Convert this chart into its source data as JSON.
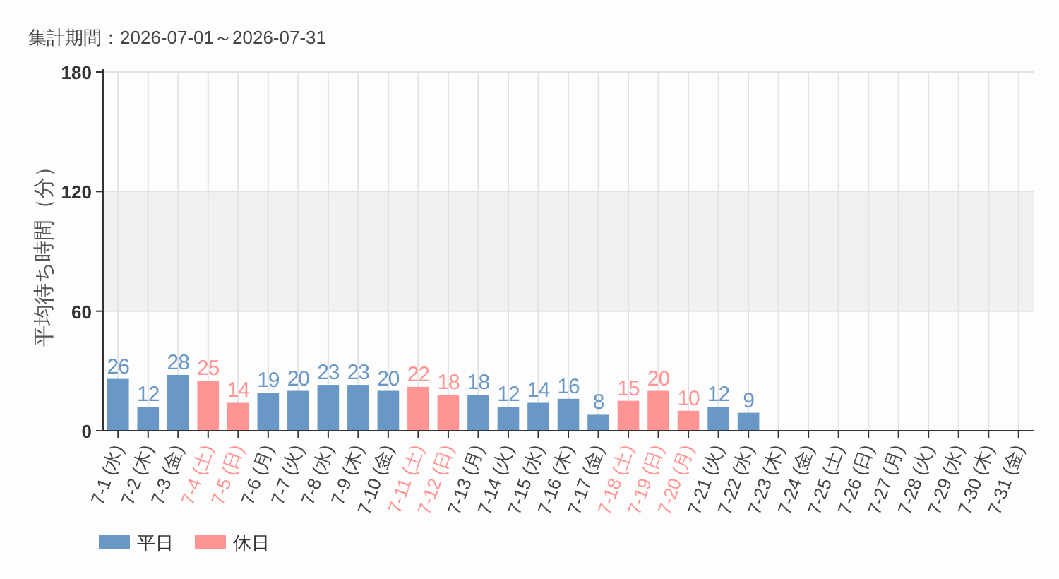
{
  "chart_data": {
    "type": "bar",
    "title": "集計期間：2026-07-01～2026-07-31",
    "ylabel": "平均待ち時間（分）",
    "categories": [
      "7-1 (水)",
      "7-2 (木)",
      "7-3 (金)",
      "7-4 (土)",
      "7-5 (日)",
      "7-6 (月)",
      "7-7 (火)",
      "7-8 (水)",
      "7-9 (木)",
      "7-10 (金)",
      "7-11 (土)",
      "7-12 (日)",
      "7-13 (月)",
      "7-14 (火)",
      "7-15 (水)",
      "7-16 (木)",
      "7-17 (金)",
      "7-18 (土)",
      "7-19 (日)",
      "7-20 (月)",
      "7-21 (火)",
      "7-22 (水)",
      "7-23 (木)",
      "7-24 (金)",
      "7-25 (土)",
      "7-26 (日)",
      "7-27 (月)",
      "7-28 (火)",
      "7-29 (水)",
      "7-30 (木)",
      "7-31 (金)"
    ],
    "series": [
      {
        "name": "平日",
        "color": "#6a98c6",
        "values": [
          26,
          12,
          28,
          null,
          null,
          19,
          20,
          23,
          23,
          20,
          null,
          null,
          18,
          12,
          14,
          16,
          8,
          null,
          null,
          null,
          12,
          9,
          null,
          null,
          null,
          null,
          null,
          null,
          null,
          null,
          null
        ]
      },
      {
        "name": "休日",
        "color": "#ff9494",
        "values": [
          null,
          null,
          null,
          25,
          14,
          null,
          null,
          null,
          null,
          null,
          22,
          18,
          null,
          null,
          null,
          null,
          null,
          15,
          20,
          10,
          null,
          null,
          null,
          null,
          null,
          null,
          null,
          null,
          null,
          null,
          null
        ]
      }
    ],
    "stacked": true,
    "ylim": [
      0,
      180
    ],
    "yticks": [
      0,
      60,
      120,
      180
    ],
    "bands": [
      {
        "axis": "y",
        "from": 60,
        "to": 120,
        "color": "#f1f1f1"
      }
    ],
    "grid": true,
    "data_labels": true,
    "legend": "bottom left"
  }
}
